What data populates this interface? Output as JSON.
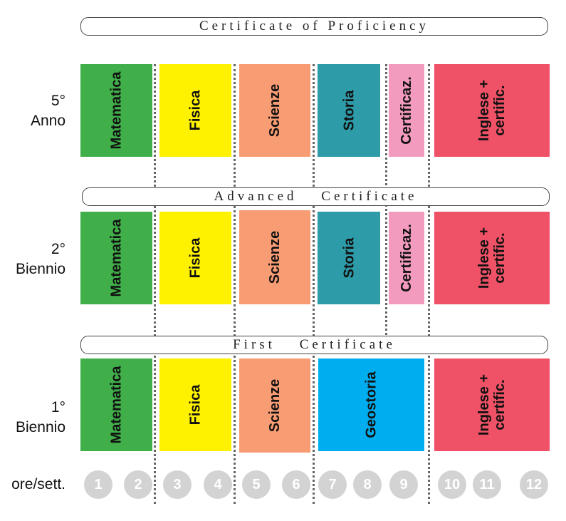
{
  "banners": {
    "proficiency": "Certificate of Proficiency",
    "advanced": "Advanced Certificate",
    "first": "First Certificate"
  },
  "rows": {
    "anno5": {
      "label_line1": "5°",
      "label_line2": "Anno"
    },
    "biennio2": {
      "label_line1": "2°",
      "label_line2": "Biennio"
    },
    "biennio1": {
      "label_line1": "1°",
      "label_line2": "Biennio"
    }
  },
  "subjects": {
    "matematica": "Matematica",
    "fisica": "Fisica",
    "scienze": "Scienze",
    "storia": "Storia",
    "certificaz": "Certificaz.",
    "inglese_line1": "Inglese +",
    "inglese_line2": "certific.",
    "geostoria": "Geostoria"
  },
  "colors": {
    "matematica": "#40ae49",
    "fisica": "#fff200",
    "scienze": "#f89c74",
    "storia": "#2e9ba8",
    "certificaz": "#f39bbe",
    "inglese": "#ef5266",
    "geostoria": "#00aeef",
    "hour_circle": "#d3d3d3"
  },
  "hours": {
    "label": "ore/sett.",
    "numbers": [
      "1",
      "2",
      "3",
      "4",
      "5",
      "6",
      "7",
      "8",
      "9",
      "10",
      "11",
      "12"
    ]
  }
}
